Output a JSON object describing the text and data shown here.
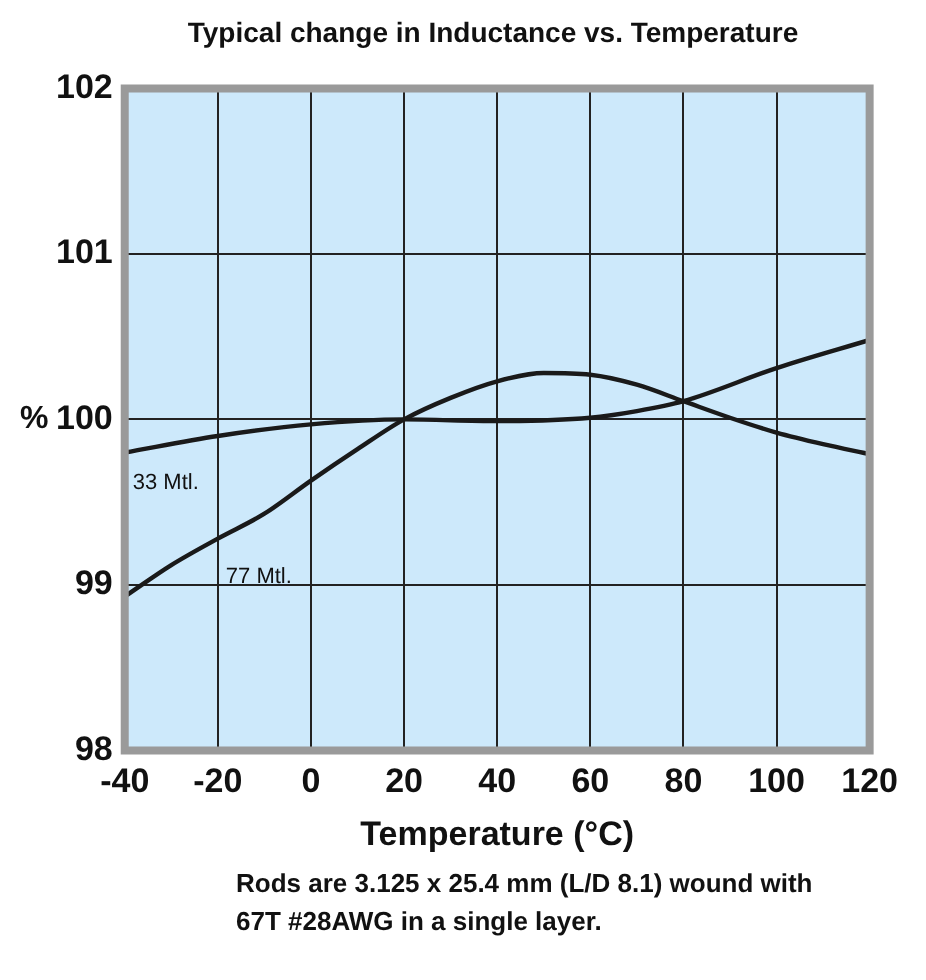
{
  "chart_data": {
    "type": "line",
    "title": "Typical change in Inductance vs. Temperature",
    "xlabel": "Temperature (°C)",
    "ylabel": "%",
    "annotations": [
      "Rods are 3.125 x 25.4 mm (L/D 8.1) wound with 67T #28AWG in a single layer."
    ],
    "series": [
      {
        "name": "33 Mtl.",
        "color": "#1a1a1a",
        "x": [
          -40,
          -20,
          0,
          20,
          40,
          60,
          70,
          80,
          100,
          120
        ],
        "values": [
          99.8,
          99.9,
          99.97,
          100,
          99.99,
          100.01,
          100.05,
          100.11,
          100.31,
          100.48
        ]
      },
      {
        "name": "77 Mtl.",
        "color": "#1a1a1a",
        "x": [
          -40,
          -30,
          -20,
          -10,
          0,
          10,
          20,
          30,
          40,
          50,
          60,
          70,
          80,
          90,
          100,
          110,
          120
        ],
        "values": [
          98.93,
          99.12,
          99.28,
          99.43,
          99.63,
          99.82,
          100,
          100.13,
          100.23,
          100.28,
          100.27,
          100.21,
          100.11,
          100.01,
          99.92,
          99.85,
          99.79
        ]
      }
    ],
    "xlim": [
      -40,
      120
    ],
    "xticks": [
      -40,
      -20,
      0,
      20,
      40,
      60,
      80,
      100,
      120
    ],
    "ylim": [
      98,
      102
    ],
    "yticks": [
      98,
      99,
      100,
      101,
      102
    ],
    "grid": true,
    "legend": false,
    "marker": "none",
    "line_style": "solid"
  }
}
